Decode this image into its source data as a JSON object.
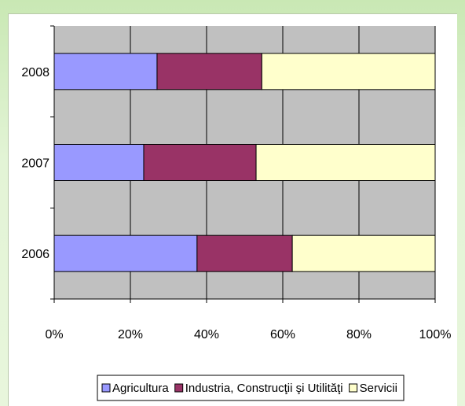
{
  "chart_data": {
    "type": "bar",
    "orientation": "horizontal",
    "stacked": "percent",
    "categories": [
      "2006",
      "2007",
      "2008"
    ],
    "series": [
      {
        "name": "Agricultura",
        "values": [
          37.5,
          23.5,
          27.0
        ],
        "color": "#9999ff"
      },
      {
        "name": "Industria, Construcţii şi Utilităţi",
        "values": [
          25.0,
          29.5,
          27.5
        ],
        "color": "#993366"
      },
      {
        "name": "Servicii",
        "values": [
          37.5,
          47.0,
          45.5
        ],
        "color": "#ffffcc"
      }
    ],
    "x_ticks": [
      "0%",
      "20%",
      "40%",
      "60%",
      "80%",
      "100%"
    ],
    "xlim": [
      0,
      100
    ],
    "grid": true,
    "plot_background": "#c0c0c0",
    "legend_position": "bottom",
    "title": "",
    "xlabel": "",
    "ylabel": ""
  }
}
